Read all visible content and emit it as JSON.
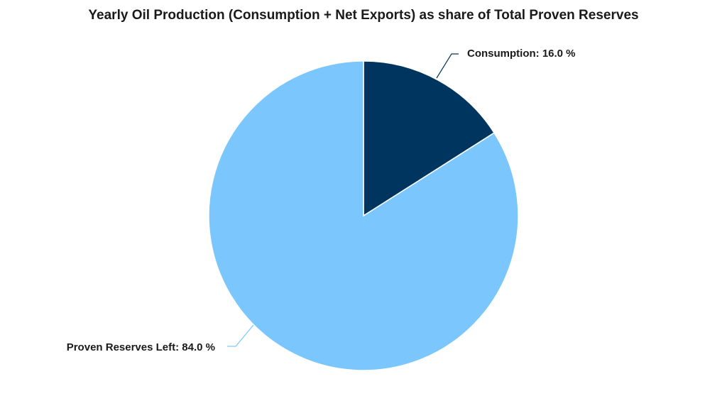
{
  "chart_data": {
    "type": "pie",
    "title": "Yearly Oil Production (Consumption + Net Exports) as share of Total Proven Reserves",
    "values": [
      16,
      84
    ],
    "value_labels": [
      "Consumption: 16.0 %",
      "Proven Reserves Left: 84.0 %"
    ],
    "colors": [
      "#00355f",
      "#7ac6fd"
    ]
  }
}
